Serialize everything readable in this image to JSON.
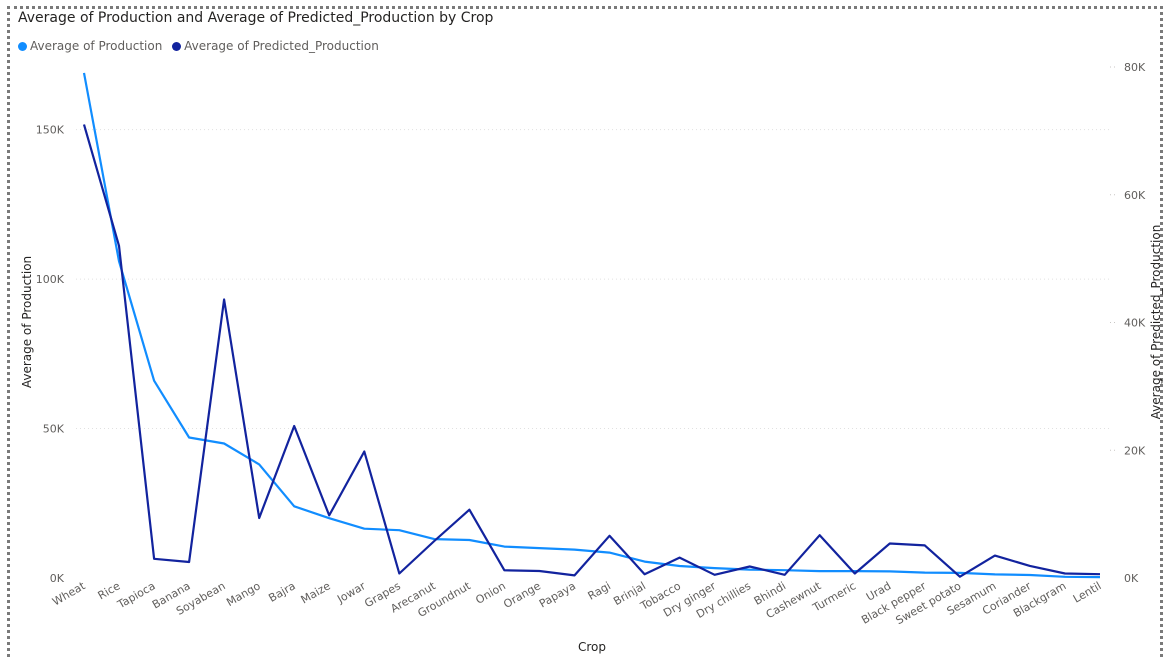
{
  "chart_data": {
    "type": "line",
    "title": "Average of Production and Average of Predicted_Production by Crop",
    "xlabel": "Crop",
    "ylabel": "Average of Production",
    "y2label": "Average of Predicted_Production",
    "ylim": [
      0,
      180000
    ],
    "y2lim": [
      0,
      80000
    ],
    "yticks": [
      {
        "value": 0,
        "label": "0K"
      },
      {
        "value": 50000,
        "label": "50K"
      },
      {
        "value": 100000,
        "label": "100K"
      },
      {
        "value": 150000,
        "label": "150K"
      }
    ],
    "y2ticks": [
      {
        "value": 0,
        "label": "0K"
      },
      {
        "value": 20000,
        "label": "20K"
      },
      {
        "value": 40000,
        "label": "40K"
      },
      {
        "value": 60000,
        "label": "60K"
      },
      {
        "value": 80000,
        "label": "80K"
      }
    ],
    "grid": true,
    "legend_position": "top-left",
    "categories": [
      "Wheat",
      "Rice",
      "Tapioca",
      "Banana",
      "Soyabean",
      "Mango",
      "Bajra",
      "Maize",
      "Jowar",
      "Grapes",
      "Arecanut",
      "Groundnut",
      "Onion",
      "Orange",
      "Papaya",
      "Ragi",
      "Brinjal",
      "Tobacco",
      "Dry ginger",
      "Dry chillies",
      "Bhindi",
      "Cashewnut",
      "Turmeric",
      "Urad",
      "Black pepper",
      "Sweet potato",
      "Sesamum",
      "Coriander",
      "Blackgram",
      "Lentil"
    ],
    "series": [
      {
        "name": "Average of Production",
        "axis": "left",
        "color": "#118dff",
        "values": [
          169000,
          106000,
          66000,
          47000,
          45000,
          38000,
          24000,
          20000,
          16500,
          16000,
          13000,
          12700,
          10500,
          10000,
          9500,
          8500,
          5500,
          4000,
          3300,
          2800,
          2600,
          2300,
          2300,
          2200,
          1800,
          1700,
          1200,
          1000,
          400,
          300
        ]
      },
      {
        "name": "Average of Predicted_Production",
        "axis": "right",
        "color": "#12239e",
        "values": [
          71000,
          52000,
          3000,
          2500,
          43600,
          9400,
          23800,
          9800,
          19800,
          700,
          5800,
          10700,
          1200,
          1100,
          400,
          6600,
          600,
          3200,
          500,
          1800,
          500,
          6700,
          700,
          5400,
          5100,
          200,
          3500,
          1900,
          700,
          600
        ]
      }
    ]
  }
}
